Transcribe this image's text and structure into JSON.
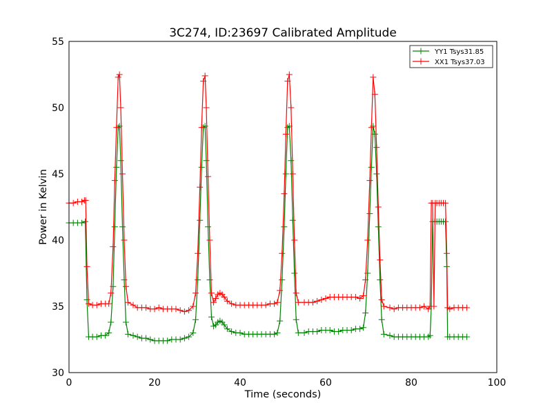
{
  "chart_data": {
    "type": "line",
    "title": "3C274, ID:23697 Calibrated Amplitude",
    "xlabel": "Time (seconds)",
    "ylabel": "Power in Kelvin",
    "xlim": [
      0,
      100
    ],
    "ylim": [
      30,
      55
    ],
    "xticks": [
      "0",
      "20",
      "40",
      "60",
      "80",
      "100"
    ],
    "yticks": [
      "30",
      "35",
      "40",
      "45",
      "50",
      "55"
    ],
    "grid": false,
    "legend_position": "top-right",
    "marker": "+",
    "series": [
      {
        "name": "YY1 Tsys31.85",
        "color": "#008000",
        "points": [
          [
            0,
            41.3
          ],
          [
            1,
            41.3
          ],
          [
            2,
            41.3
          ],
          [
            3,
            41.3
          ],
          [
            3.8,
            41.4
          ],
          [
            4.2,
            35.5
          ],
          [
            4.6,
            32.7
          ],
          [
            5.5,
            32.7
          ],
          [
            6.5,
            32.7
          ],
          [
            7.5,
            32.8
          ],
          [
            8.5,
            32.8
          ],
          [
            9.3,
            33.0
          ],
          [
            9.8,
            33.8
          ],
          [
            10.3,
            36.5
          ],
          [
            10.7,
            41.0
          ],
          [
            11.1,
            45.5
          ],
          [
            11.5,
            48.5
          ],
          [
            11.8,
            48.6
          ],
          [
            12.1,
            46.0
          ],
          [
            12.5,
            41.0
          ],
          [
            12.9,
            37.0
          ],
          [
            13.3,
            33.8
          ],
          [
            13.8,
            32.9
          ],
          [
            15,
            32.8
          ],
          [
            16,
            32.7
          ],
          [
            17,
            32.6
          ],
          [
            18,
            32.6
          ],
          [
            19,
            32.5
          ],
          [
            20,
            32.4
          ],
          [
            21,
            32.4
          ],
          [
            22,
            32.4
          ],
          [
            23,
            32.4
          ],
          [
            24,
            32.5
          ],
          [
            25,
            32.5
          ],
          [
            26,
            32.5
          ],
          [
            27,
            32.6
          ],
          [
            28,
            32.7
          ],
          [
            29,
            33.0
          ],
          [
            29.6,
            34.0
          ],
          [
            30.1,
            37.0
          ],
          [
            30.6,
            41.5
          ],
          [
            31.0,
            45.5
          ],
          [
            31.4,
            48.5
          ],
          [
            31.8,
            48.6
          ],
          [
            32.1,
            46.0
          ],
          [
            32.5,
            41.0
          ],
          [
            32.9,
            37.0
          ],
          [
            33.3,
            34.2
          ],
          [
            33.8,
            33.5
          ],
          [
            34.3,
            33.6
          ],
          [
            34.8,
            33.8
          ],
          [
            35.3,
            33.9
          ],
          [
            35.8,
            33.8
          ],
          [
            36.3,
            33.6
          ],
          [
            37,
            33.3
          ],
          [
            38,
            33.1
          ],
          [
            39,
            33.0
          ],
          [
            40,
            33.0
          ],
          [
            41,
            32.9
          ],
          [
            42,
            32.9
          ],
          [
            43,
            32.9
          ],
          [
            44,
            32.9
          ],
          [
            45,
            32.9
          ],
          [
            46,
            32.9
          ],
          [
            47,
            32.9
          ],
          [
            48,
            32.9
          ],
          [
            48.7,
            33.0
          ],
          [
            49.3,
            33.9
          ],
          [
            49.8,
            37.0
          ],
          [
            50.3,
            41.0
          ],
          [
            50.7,
            45.0
          ],
          [
            51.1,
            48.5
          ],
          [
            51.5,
            48.6
          ],
          [
            51.9,
            46.0
          ],
          [
            52.3,
            41.5
          ],
          [
            52.7,
            37.5
          ],
          [
            53.1,
            34.0
          ],
          [
            53.6,
            33.0
          ],
          [
            55,
            33.0
          ],
          [
            56,
            33.1
          ],
          [
            57,
            33.1
          ],
          [
            58,
            33.1
          ],
          [
            59,
            33.2
          ],
          [
            60,
            33.2
          ],
          [
            61,
            33.2
          ],
          [
            62,
            33.1
          ],
          [
            63,
            33.1
          ],
          [
            64,
            33.2
          ],
          [
            65,
            33.2
          ],
          [
            66,
            33.2
          ],
          [
            67,
            33.3
          ],
          [
            68,
            33.3
          ],
          [
            68.8,
            33.4
          ],
          [
            69.3,
            34.5
          ],
          [
            69.8,
            37.5
          ],
          [
            70.3,
            42.0
          ],
          [
            70.7,
            45.5
          ],
          [
            71.1,
            48.6
          ],
          [
            71.5,
            48.0
          ],
          [
            71.9,
            45.0
          ],
          [
            72.3,
            41.0
          ],
          [
            72.7,
            37.0
          ],
          [
            73.1,
            34.0
          ],
          [
            73.6,
            32.9
          ],
          [
            75,
            32.8
          ],
          [
            76,
            32.7
          ],
          [
            77,
            32.7
          ],
          [
            78,
            32.7
          ],
          [
            79,
            32.7
          ],
          [
            80,
            32.7
          ],
          [
            81,
            32.7
          ],
          [
            82,
            32.7
          ],
          [
            83,
            32.7
          ],
          [
            84,
            32.7
          ],
          [
            84.4,
            32.8
          ],
          [
            84.7,
            35.0
          ],
          [
            85.0,
            41.4
          ],
          [
            85.5,
            41.4
          ],
          [
            86,
            41.4
          ],
          [
            86.5,
            41.4
          ],
          [
            87,
            41.4
          ],
          [
            87.5,
            41.4
          ],
          [
            88,
            41.4
          ],
          [
            88.3,
            38.0
          ],
          [
            88.5,
            32.7
          ],
          [
            89,
            32.7
          ],
          [
            90,
            32.7
          ],
          [
            91,
            32.7
          ],
          [
            92,
            32.7
          ],
          [
            93,
            32.7
          ]
        ]
      },
      {
        "name": "XX1 Tsys37.03",
        "color": "#ff0000",
        "points": [
          [
            0,
            42.8
          ],
          [
            1,
            42.8
          ],
          [
            2,
            42.9
          ],
          [
            3,
            42.9
          ],
          [
            3.6,
            43.0
          ],
          [
            3.9,
            43.0
          ],
          [
            4.2,
            38.0
          ],
          [
            4.6,
            35.2
          ],
          [
            5.5,
            35.1
          ],
          [
            6.5,
            35.1
          ],
          [
            7.5,
            35.2
          ],
          [
            8.5,
            35.2
          ],
          [
            9.3,
            35.2
          ],
          [
            9.8,
            36.0
          ],
          [
            10.3,
            39.5
          ],
          [
            10.7,
            44.5
          ],
          [
            11.1,
            48.5
          ],
          [
            11.5,
            52.3
          ],
          [
            11.8,
            52.5
          ],
          [
            12.1,
            50.0
          ],
          [
            12.5,
            45.0
          ],
          [
            12.9,
            40.0
          ],
          [
            13.3,
            36.5
          ],
          [
            13.8,
            35.3
          ],
          [
            15,
            35.1
          ],
          [
            16,
            34.9
          ],
          [
            17,
            34.9
          ],
          [
            18,
            34.9
          ],
          [
            19,
            34.8
          ],
          [
            20,
            34.8
          ],
          [
            21,
            34.9
          ],
          [
            22,
            34.8
          ],
          [
            23,
            34.8
          ],
          [
            24,
            34.8
          ],
          [
            25,
            34.8
          ],
          [
            26,
            34.7
          ],
          [
            27,
            34.6
          ],
          [
            28,
            34.7
          ],
          [
            29,
            35.0
          ],
          [
            29.6,
            36.0
          ],
          [
            30.1,
            39.0
          ],
          [
            30.6,
            44.0
          ],
          [
            31.0,
            48.5
          ],
          [
            31.4,
            52.0
          ],
          [
            31.8,
            52.4
          ],
          [
            32.1,
            50.0
          ],
          [
            32.5,
            44.8
          ],
          [
            32.9,
            40.0
          ],
          [
            33.3,
            36.0
          ],
          [
            33.8,
            35.3
          ],
          [
            34.3,
            35.6
          ],
          [
            34.8,
            35.9
          ],
          [
            35.3,
            36.0
          ],
          [
            35.8,
            35.9
          ],
          [
            36.3,
            35.7
          ],
          [
            37,
            35.4
          ],
          [
            38,
            35.2
          ],
          [
            39,
            35.1
          ],
          [
            40,
            35.1
          ],
          [
            41,
            35.1
          ],
          [
            42,
            35.1
          ],
          [
            43,
            35.1
          ],
          [
            44,
            35.1
          ],
          [
            45,
            35.1
          ],
          [
            46,
            35.1
          ],
          [
            47,
            35.2
          ],
          [
            48,
            35.2
          ],
          [
            48.7,
            35.3
          ],
          [
            49.3,
            36.2
          ],
          [
            49.8,
            39.0
          ],
          [
            50.3,
            43.5
          ],
          [
            50.7,
            48.0
          ],
          [
            51.1,
            52.0
          ],
          [
            51.5,
            52.5
          ],
          [
            51.9,
            50.0
          ],
          [
            52.3,
            45.0
          ],
          [
            52.7,
            40.0
          ],
          [
            53.1,
            36.0
          ],
          [
            53.6,
            35.3
          ],
          [
            55,
            35.3
          ],
          [
            56,
            35.3
          ],
          [
            57,
            35.3
          ],
          [
            58,
            35.4
          ],
          [
            59,
            35.5
          ],
          [
            60,
            35.6
          ],
          [
            61,
            35.7
          ],
          [
            62,
            35.7
          ],
          [
            63,
            35.7
          ],
          [
            64,
            35.7
          ],
          [
            65,
            35.7
          ],
          [
            66,
            35.7
          ],
          [
            67,
            35.7
          ],
          [
            68,
            35.6
          ],
          [
            68.8,
            35.8
          ],
          [
            69.3,
            37.0
          ],
          [
            69.8,
            40.0
          ],
          [
            70.3,
            44.5
          ],
          [
            70.7,
            48.5
          ],
          [
            71.1,
            52.3
          ],
          [
            71.5,
            51.0
          ],
          [
            71.9,
            47.0
          ],
          [
            72.3,
            42.5
          ],
          [
            72.7,
            38.5
          ],
          [
            73.1,
            35.5
          ],
          [
            73.6,
            35.0
          ],
          [
            75,
            34.9
          ],
          [
            76,
            34.8
          ],
          [
            77,
            34.9
          ],
          [
            78,
            34.9
          ],
          [
            79,
            34.9
          ],
          [
            80,
            34.9
          ],
          [
            81,
            34.9
          ],
          [
            82,
            34.9
          ],
          [
            83,
            35.0
          ],
          [
            84,
            34.8
          ],
          [
            84.4,
            35.0
          ],
          [
            84.7,
            42.8
          ],
          [
            85.0,
            42.8
          ],
          [
            85.3,
            35.0
          ],
          [
            85.6,
            42.8
          ],
          [
            86,
            42.8
          ],
          [
            86.5,
            42.8
          ],
          [
            87,
            42.8
          ],
          [
            87.5,
            42.8
          ],
          [
            88,
            42.8
          ],
          [
            88.3,
            39.0
          ],
          [
            88.5,
            34.9
          ],
          [
            89,
            34.8
          ],
          [
            90,
            34.9
          ],
          [
            91,
            34.9
          ],
          [
            92,
            34.9
          ],
          [
            93,
            34.9
          ]
        ]
      }
    ]
  }
}
